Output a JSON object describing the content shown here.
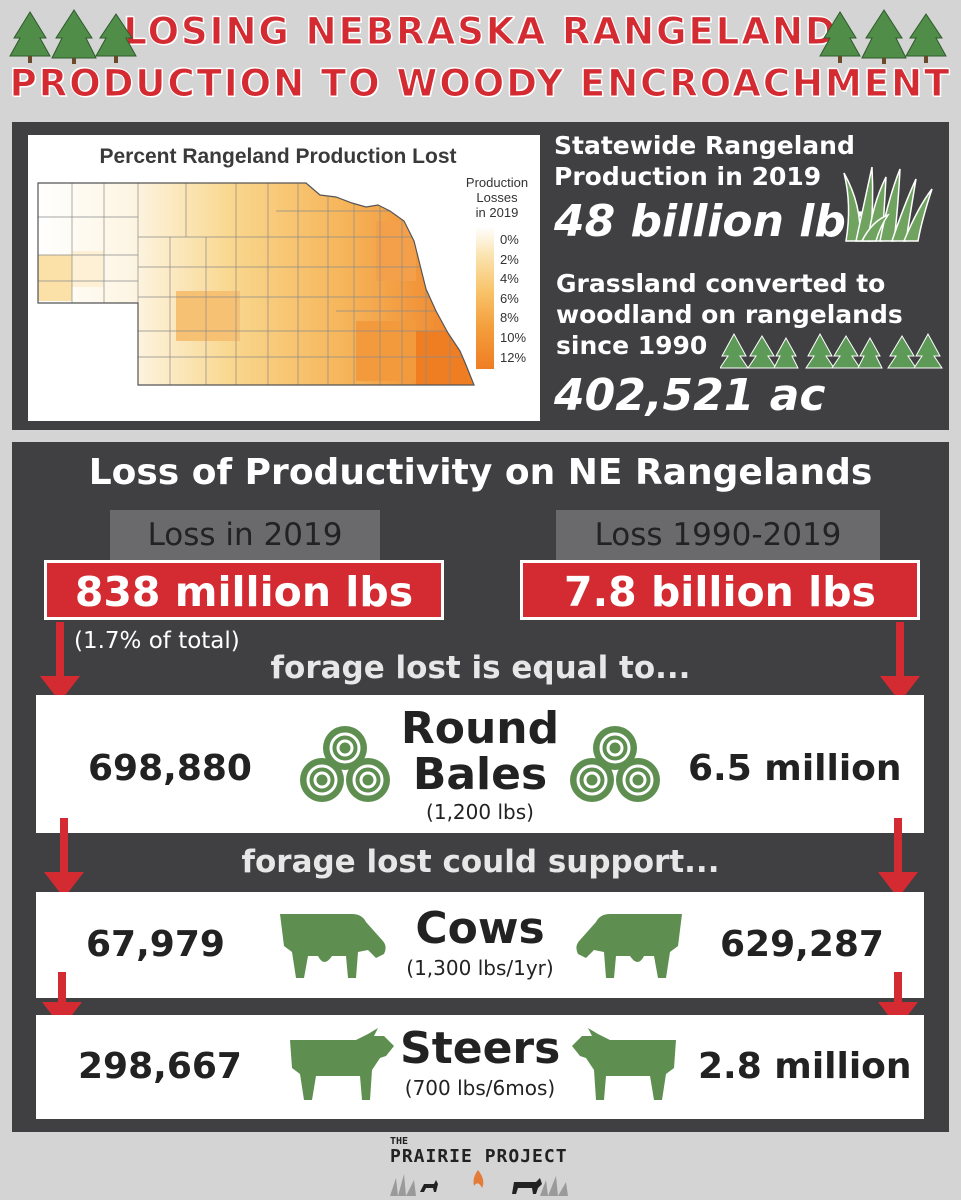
{
  "header": {
    "title_line1": "LOSING NEBRASKA RANGELAND",
    "title_line2": "PRODUCTION TO WOODY ENCROACHMENT"
  },
  "map": {
    "title": "Percent Rangeland Production Lost",
    "legend_title_lines": [
      "Production",
      "Losses",
      "in 2019"
    ],
    "legend_ticks": [
      "0%",
      "2%",
      "4%",
      "6%",
      "8%",
      "10%",
      "12%"
    ]
  },
  "stats": {
    "production_label_line1": "Statewide Rangeland",
    "production_label_line2": "Production in 2019",
    "production_value": "48 billion lbs",
    "converted_label_line1": "Grassland converted to",
    "converted_label_line2": "woodland on rangelands",
    "converted_label_line3": "since 1990",
    "converted_value": "402,521 ac"
  },
  "productivity": {
    "heading": "Loss of Productivity on NE Rangelands",
    "loss_2019_label": "Loss in 2019",
    "loss_2019_value": "838 million lbs",
    "loss_2019_note": "(1.7% of total)",
    "loss_range_label": "Loss 1990-2019",
    "loss_range_value": "7.8 billion lbs",
    "equal_text": "forage lost is equal to...",
    "support_text": "forage lost could support..."
  },
  "rows": {
    "bales": {
      "name_line1": "Round",
      "name_line2": "Bales",
      "sub": "(1,200 lbs)",
      "left_value": "698,880",
      "right_value": "6.5 million"
    },
    "cows": {
      "name": "Cows",
      "sub": "(1,300 lbs/1yr)",
      "left_value": "67,979",
      "right_value": "629,287"
    },
    "steers": {
      "name": "Steers",
      "sub": "(700 lbs/6mos)",
      "left_value": "298,667",
      "right_value": "2.8 million"
    }
  },
  "footer": {
    "logo_the": "THE",
    "logo_name": "PRAIRIE PROJECT"
  },
  "colors": {
    "accent_red": "#d42a31",
    "panel_dark": "#403f42",
    "icon_green": "#5e8f50",
    "tree_green": "#4f8d48"
  },
  "icons": [
    "tree-icon",
    "grass-icon",
    "hay-bale-icon",
    "cow-icon",
    "steer-icon",
    "arrow-down-icon"
  ]
}
